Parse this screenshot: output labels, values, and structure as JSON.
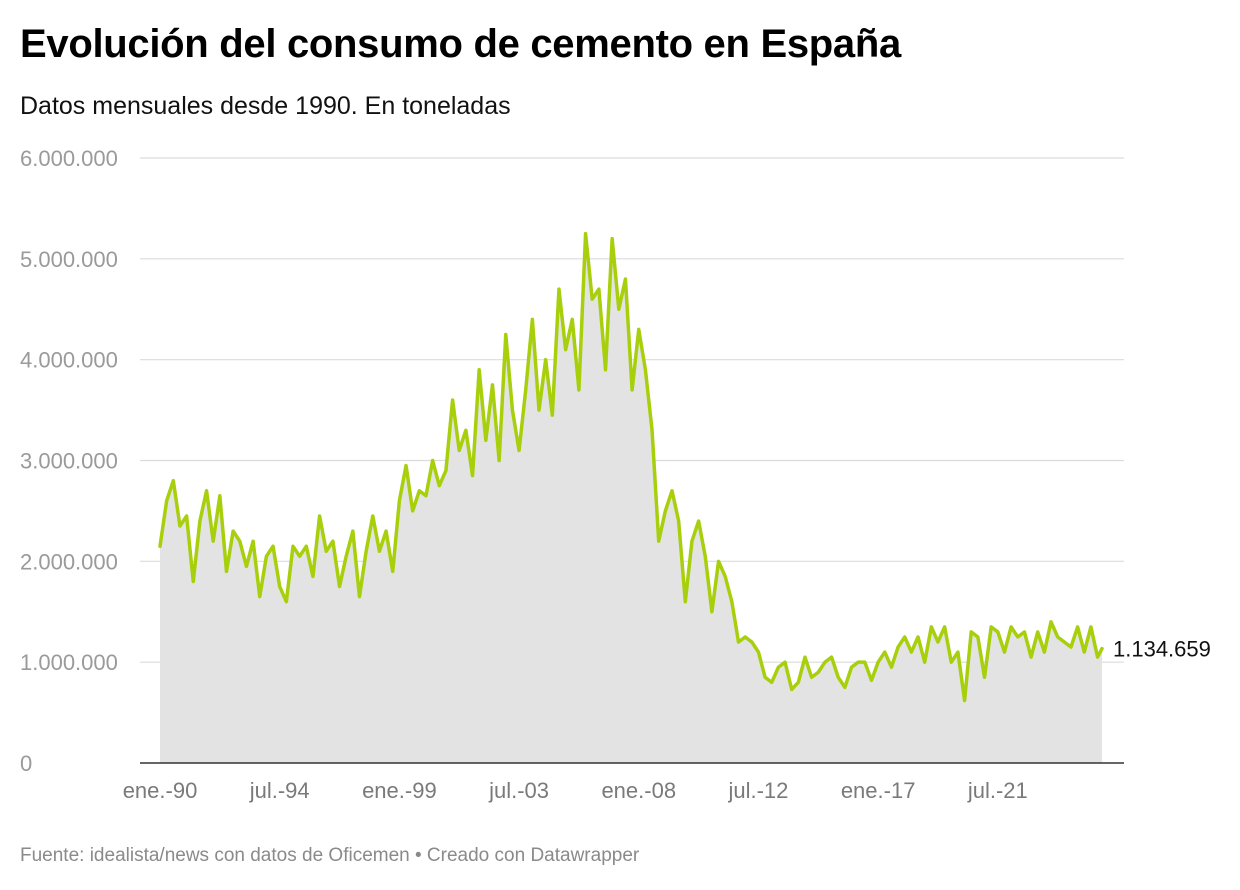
{
  "chart_data": {
    "type": "area",
    "title": "Evolución del consumo de cemento en España",
    "subtitle": "Datos mensuales desde 1990. En toneladas",
    "source": "Fuente: idealista/news con datos de Oficemen • Creado con Datawrapper",
    "xlabel": "",
    "ylabel": "",
    "ylim": [
      0,
      6000000
    ],
    "xlim": [
      1990.0,
      2025.417
    ],
    "y_ticks": [
      0,
      1000000,
      2000000,
      3000000,
      4000000,
      5000000,
      6000000
    ],
    "y_tick_labels": [
      "0",
      "1.000.000",
      "2.000.000",
      "3.000.000",
      "4.000.000",
      "5.000.000",
      "6.000.000"
    ],
    "x_ticks": [
      1990.0,
      1994.5,
      1999.0,
      2003.5,
      2008.0,
      2012.5,
      2017.0,
      2021.5
    ],
    "x_tick_labels": [
      "ene.-90",
      "jul.-94",
      "ene.-99",
      "jul.-03",
      "ene.-08",
      "jul.-12",
      "ene.-17",
      "jul.-21"
    ],
    "grid": true,
    "end_label": "1.134.659",
    "colors": {
      "line": "#a8cf0c",
      "area": "#e3e3e3",
      "grid": "#dcdcdc",
      "axis": "#333333"
    },
    "series": [
      {
        "x": [
          1990.0,
          1990.25,
          1990.5,
          1990.75,
          1991.0,
          1991.25,
          1991.5,
          1991.75,
          1992.0,
          1992.25,
          1992.5,
          1992.75,
          1993.0,
          1993.25,
          1993.5,
          1993.75,
          1994.0,
          1994.25,
          1994.5,
          1994.75,
          1995.0,
          1995.25,
          1995.5,
          1995.75,
          1996.0,
          1996.25,
          1996.5,
          1996.75,
          1997.0,
          1997.25,
          1997.5,
          1997.75,
          1998.0,
          1998.25,
          1998.5,
          1998.75,
          1999.0,
          1999.25,
          1999.5,
          1999.75,
          2000.0,
          2000.25,
          2000.5,
          2000.75,
          2001.0,
          2001.25,
          2001.5,
          2001.75,
          2002.0,
          2002.25,
          2002.5,
          2002.75,
          2003.0,
          2003.25,
          2003.5,
          2003.75,
          2004.0,
          2004.25,
          2004.5,
          2004.75,
          2005.0,
          2005.25,
          2005.5,
          2005.75,
          2006.0,
          2006.25,
          2006.5,
          2006.75,
          2007.0,
          2007.25,
          2007.5,
          2007.75,
          2008.0,
          2008.25,
          2008.5,
          2008.75,
          2009.0,
          2009.25,
          2009.5,
          2009.75,
          2010.0,
          2010.25,
          2010.5,
          2010.75,
          2011.0,
          2011.25,
          2011.5,
          2011.75,
          2012.0,
          2012.25,
          2012.5,
          2012.75,
          2013.0,
          2013.25,
          2013.5,
          2013.75,
          2014.0,
          2014.25,
          2014.5,
          2014.75,
          2015.0,
          2015.25,
          2015.5,
          2015.75,
          2016.0,
          2016.25,
          2016.5,
          2016.75,
          2017.0,
          2017.25,
          2017.5,
          2017.75,
          2018.0,
          2018.25,
          2018.5,
          2018.75,
          2019.0,
          2019.25,
          2019.5,
          2019.75,
          2020.0,
          2020.25,
          2020.5,
          2020.75,
          2021.0,
          2021.25,
          2021.5,
          2021.75,
          2022.0,
          2022.25,
          2022.5,
          2022.75,
          2023.0,
          2023.25,
          2023.5,
          2023.75,
          2024.0,
          2024.25,
          2024.5,
          2024.75,
          2025.0,
          2025.25,
          2025.417
        ],
        "values": [
          2150000,
          2600000,
          2800000,
          2350000,
          2450000,
          1800000,
          2400000,
          2700000,
          2200000,
          2650000,
          1900000,
          2300000,
          2200000,
          1950000,
          2200000,
          1650000,
          2050000,
          2150000,
          1750000,
          1600000,
          2150000,
          2050000,
          2150000,
          1850000,
          2450000,
          2100000,
          2200000,
          1750000,
          2050000,
          2300000,
          1650000,
          2100000,
          2450000,
          2100000,
          2300000,
          1900000,
          2600000,
          2950000,
          2500000,
          2700000,
          2650000,
          3000000,
          2750000,
          2900000,
          3600000,
          3100000,
          3300000,
          2850000,
          3900000,
          3200000,
          3750000,
          3000000,
          4250000,
          3500000,
          3100000,
          3700000,
          4400000,
          3500000,
          4000000,
          3450000,
          4700000,
          4100000,
          4400000,
          3700000,
          5250000,
          4600000,
          4700000,
          3900000,
          5200000,
          4500000,
          4800000,
          3700000,
          4300000,
          3900000,
          3300000,
          2200000,
          2500000,
          2700000,
          2400000,
          1600000,
          2200000,
          2400000,
          2050000,
          1500000,
          2000000,
          1850000,
          1600000,
          1200000,
          1250000,
          1200000,
          1100000,
          850000,
          800000,
          950000,
          1000000,
          730000,
          800000,
          1050000,
          850000,
          900000,
          1000000,
          1050000,
          850000,
          750000,
          950000,
          1000000,
          1000000,
          820000,
          1000000,
          1100000,
          950000,
          1150000,
          1250000,
          1100000,
          1250000,
          1000000,
          1350000,
          1200000,
          1350000,
          1000000,
          1100000,
          620000,
          1300000,
          1250000,
          850000,
          1350000,
          1300000,
          1100000,
          1350000,
          1250000,
          1300000,
          1050000,
          1300000,
          1100000,
          1400000,
          1250000,
          1200000,
          1150000,
          1350000,
          1100000,
          1350000,
          1050000,
          1134659
        ]
      }
    ]
  }
}
